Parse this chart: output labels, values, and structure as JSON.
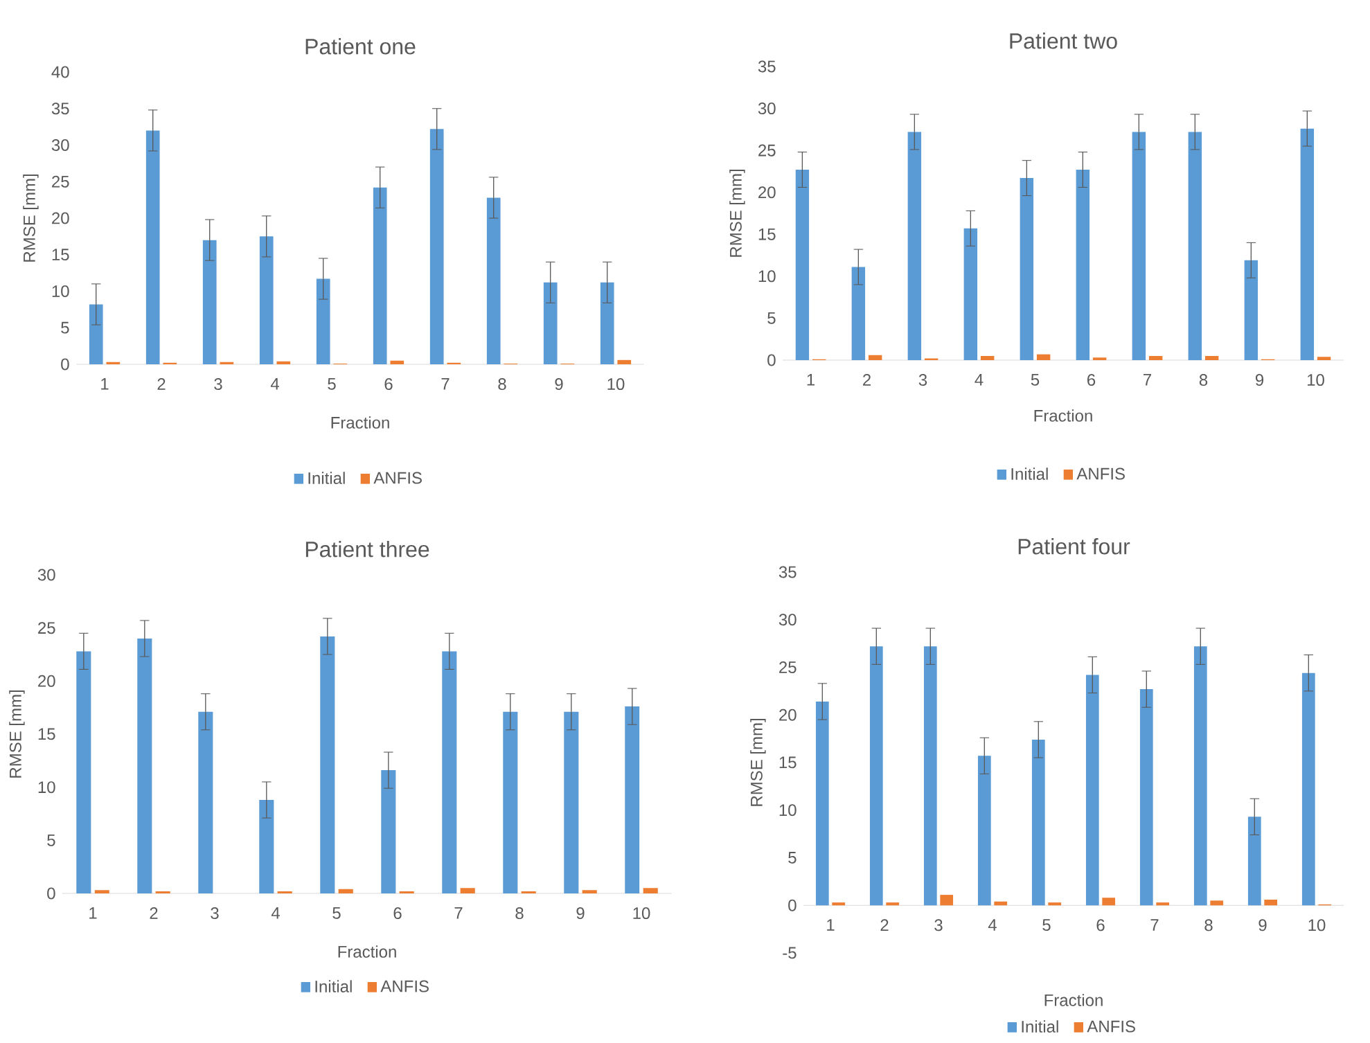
{
  "chart_data": [
    {
      "type": "bar",
      "title": "Patient one",
      "xlabel": "Fraction",
      "ylabel": "RMSE [mm]",
      "categories": [
        "1",
        "2",
        "3",
        "4",
        "5",
        "6",
        "7",
        "8",
        "9",
        "10"
      ],
      "legend": "bottom",
      "ylim": [
        0,
        40
      ],
      "yticks": [
        0,
        5,
        10,
        15,
        20,
        25,
        30,
        35,
        40
      ],
      "series": [
        {
          "name": "Initial",
          "color": "#5b9bd5",
          "values": [
            8.2,
            32,
            17,
            17.5,
            11.7,
            24.2,
            32.2,
            22.8,
            11.2,
            11.2
          ],
          "errors": [
            2.8,
            2.8,
            2.8,
            2.8,
            2.8,
            2.8,
            2.8,
            2.8,
            2.8,
            2.8
          ]
        },
        {
          "name": "ANFIS",
          "color": "#ed7d31",
          "values": [
            0.3,
            0.2,
            0.3,
            0.4,
            0.1,
            0.5,
            0.2,
            0.1,
            0.1,
            0.6
          ]
        }
      ]
    },
    {
      "type": "bar",
      "title": "Patient two",
      "xlabel": "Fraction",
      "ylabel": "RMSE [mm]",
      "categories": [
        "1",
        "2",
        "3",
        "4",
        "5",
        "6",
        "7",
        "8",
        "9",
        "10"
      ],
      "legend": "bottom",
      "ylim": [
        0,
        35
      ],
      "yticks": [
        0,
        5,
        10,
        15,
        20,
        25,
        30,
        35
      ],
      "series": [
        {
          "name": "Initial",
          "color": "#5b9bd5",
          "values": [
            22.7,
            11.1,
            27.2,
            15.7,
            21.7,
            22.7,
            27.2,
            27.2,
            11.9,
            27.6
          ],
          "errors": [
            2.1,
            2.1,
            2.1,
            2.1,
            2.1,
            2.1,
            2.1,
            2.1,
            2.1,
            2.1
          ]
        },
        {
          "name": "ANFIS",
          "color": "#ed7d31",
          "values": [
            0.1,
            0.6,
            0.2,
            0.5,
            0.7,
            0.3,
            0.5,
            0.5,
            0.1,
            0.4
          ]
        }
      ]
    },
    {
      "type": "bar",
      "title": "Patient three",
      "xlabel": "Fraction",
      "ylabel": "RMSE [mm]",
      "categories": [
        "1",
        "2",
        "3",
        "4",
        "5",
        "6",
        "7",
        "8",
        "9",
        "10"
      ],
      "legend": "bottom",
      "ylim": [
        0,
        30
      ],
      "yticks": [
        0,
        5,
        10,
        15,
        20,
        25,
        30
      ],
      "series": [
        {
          "name": "Initial",
          "color": "#5b9bd5",
          "values": [
            22.8,
            24.0,
            17.1,
            8.8,
            24.2,
            11.6,
            22.8,
            17.1,
            17.1,
            17.6
          ],
          "errors": [
            1.7,
            1.7,
            1.7,
            1.7,
            1.7,
            1.7,
            1.7,
            1.7,
            1.7,
            1.7
          ]
        },
        {
          "name": "ANFIS",
          "color": "#ed7d31",
          "values": [
            0.3,
            0.2,
            0,
            0.2,
            0.4,
            0.2,
            0.5,
            0.2,
            0.3,
            0.5
          ]
        }
      ]
    },
    {
      "type": "bar",
      "title": "Patient four",
      "xlabel": "Fraction",
      "ylabel": "RMSE [mm]",
      "categories": [
        "1",
        "2",
        "3",
        "4",
        "5",
        "6",
        "7",
        "8",
        "9",
        "10"
      ],
      "legend": "bottom",
      "ylim": [
        -5,
        35
      ],
      "yticks": [
        -5,
        0,
        5,
        10,
        15,
        20,
        25,
        30,
        35
      ],
      "series": [
        {
          "name": "Initial",
          "color": "#5b9bd5",
          "values": [
            21.4,
            27.2,
            27.2,
            15.7,
            17.4,
            24.2,
            22.7,
            27.2,
            9.3,
            24.4
          ],
          "errors": [
            1.9,
            1.9,
            1.9,
            1.9,
            1.9,
            1.9,
            1.9,
            1.9,
            1.9,
            1.9
          ]
        },
        {
          "name": "ANFIS",
          "color": "#ed7d31",
          "values": [
            0.3,
            0.3,
            1.1,
            0.4,
            0.3,
            0.8,
            0.3,
            0.5,
            0.6,
            0.1
          ]
        }
      ]
    }
  ]
}
